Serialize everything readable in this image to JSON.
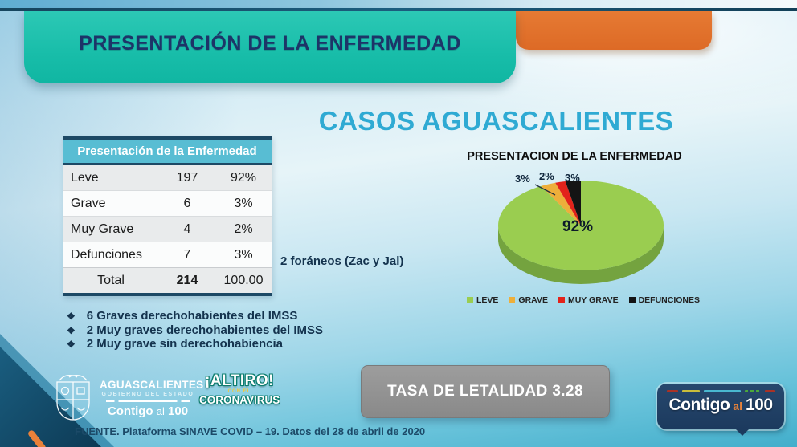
{
  "banner": {
    "title": "PRESENTACIÓN DE LA ENFERMEDAD"
  },
  "main_title": "CASOS AGUASCALIENTES",
  "table": {
    "title": "Presentación de la Enfermedad",
    "rows": [
      {
        "label": "Leve",
        "value": "197",
        "pct": "92%"
      },
      {
        "label": "Grave",
        "value": "6",
        "pct": "3%"
      },
      {
        "label": "Muy Grave",
        "value": "4",
        "pct": "2%"
      },
      {
        "label": "Defunciones",
        "value": "7",
        "pct": "3%"
      }
    ],
    "total_label": "Total",
    "total_value": "214",
    "total_pct": "100.00"
  },
  "note": "2 foráneos (Zac y Jal)",
  "bullets": [
    "6 Graves derechohabientes del IMSS",
    "2 Muy graves derechohabientes del IMSS",
    "2 Muy grave sin derechohabiencia"
  ],
  "chart_data": {
    "type": "pie",
    "style": "3d",
    "title": "PRESENTACION DE LA ENFERMEDAD",
    "labels": [
      "LEVE",
      "GRAVE",
      "MUY GRAVE",
      "DEFUNCIONES"
    ],
    "values": [
      92,
      3,
      2,
      3
    ],
    "counts": [
      197,
      6,
      4,
      7
    ],
    "colors": [
      "#9ACD50",
      "#EDAF3B",
      "#E3231B",
      "#141414"
    ],
    "side_color": "#74A33F",
    "data_labels": [
      "92%",
      "3%",
      "2%",
      "3%"
    ],
    "legend_position": "bottom",
    "start_angle_deg": 0,
    "direction": "clockwise"
  },
  "lethality_label": "TASA DE LETALIDAD 3.28",
  "footer": {
    "gov": {
      "line1": "AGUASCALIENTES",
      "line2": "GOBIERNO DEL ESTADO",
      "slogan": [
        "Contigo",
        "al",
        "100"
      ]
    },
    "altiro": {
      "line1": "¡ALTIRO!",
      "mid": "CON EL",
      "line2": "CORONAVIRUS"
    },
    "source": "FUENTE. Plataforma SINAVE COVID – 19. Datos del 28 de abril de 2020",
    "badge": {
      "part1": "Contigo",
      "part2": "al",
      "part3": "100"
    }
  },
  "colors": {
    "banner_teal": "#18BDA9",
    "accent_orange": "#E2702C",
    "title_cyan": "#2FAAD3",
    "navy_text": "#1D3468",
    "table_header_teal": "#58BDD3",
    "lethality_gray": "#909090"
  },
  "bullet_glyph": "❖"
}
